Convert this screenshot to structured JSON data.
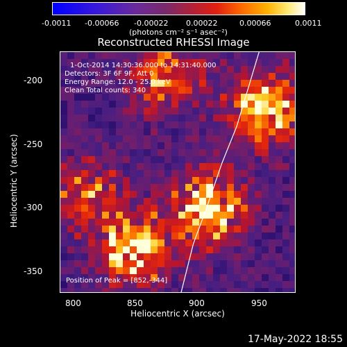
{
  "colorbar": {
    "ticks": [
      "-0.0011",
      "-0.00066",
      "-0.00022",
      "0.00022",
      "0.00066",
      "0.0011"
    ],
    "units": "(photons cm⁻² s⁻¹ asec⁻²)"
  },
  "chart_data": {
    "type": "heatmap",
    "title": "Reconstructed RHESSI Image",
    "xlabel": "Heliocentric X (arcsec)",
    "ylabel": "Heliocentric Y (arcsec)",
    "xlim": [
      785,
      975
    ],
    "ylim": [
      -370,
      -175
    ],
    "xticks": [
      800,
      850,
      900,
      950
    ],
    "yticks": [
      -200,
      -250,
      -300,
      -350
    ],
    "color_range": [
      -0.0011,
      0.0011
    ],
    "annotations": {
      "time": "1-Oct-2014 14:30:36.000 to 14:31:40.000",
      "detectors": "Detectors: 3F 6F 9F, Att 0",
      "energy": "Energy Range: 12.0 - 25.0 keV",
      "clean": "Clean     Total counts: 340",
      "peak": "Position of Peak = [852,-344]"
    },
    "limb_curve": [
      [
        882,
        -370
      ],
      [
        892,
        -330
      ],
      [
        903,
        -300
      ],
      [
        915,
        -265
      ],
      [
        927,
        -235
      ],
      [
        945,
        -175
      ]
    ],
    "bright_regions": [
      {
        "x": 845,
        "y": -335,
        "level": "high"
      },
      {
        "x": 905,
        "y": -300,
        "level": "high"
      },
      {
        "x": 950,
        "y": -220,
        "level": "high"
      },
      {
        "x": 870,
        "y": -195,
        "level": "medium"
      },
      {
        "x": 805,
        "y": -290,
        "level": "medium"
      }
    ]
  },
  "footer": {
    "timestamp": "17-May-2022 18:55"
  }
}
